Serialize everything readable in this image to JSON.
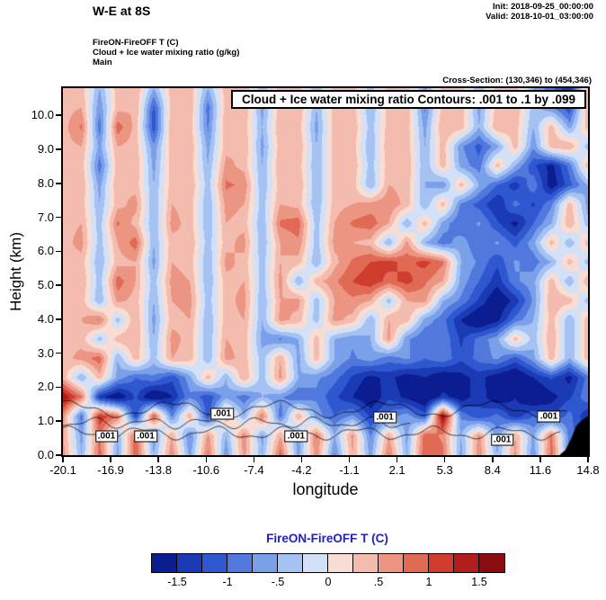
{
  "header": {
    "title": "W-E at 8S",
    "init": "Init: 2018-09-25_00:00:00",
    "valid": "Valid: 2018-10-01_03:00:00",
    "diff_field": "FireON-FireOFF T   (C)",
    "overlay_field": "Cloud + Ice water mixing ratio   (g/kg)",
    "domain": "Main",
    "cross_section": "Cross-Section: (130,346) to (454,346)"
  },
  "chart_data": {
    "type": "heatmap",
    "title": "W-E at 8S",
    "contour_title": "Cloud + Ice water mixing ratio Contours: .001 to .1 by .099",
    "xlabel": "longitude",
    "ylabel": "Height (km)",
    "x_ticks": [
      "-20.1",
      "-16.9",
      "-13.8",
      "-10.6",
      "-7.4",
      "-4.2",
      "-1.1",
      "2.1",
      "5.3",
      "8.4",
      "11.6",
      "14.8"
    ],
    "y_ticks": [
      "0.0",
      "1.0",
      "2.0",
      "3.0",
      "4.0",
      "5.0",
      "6.0",
      "7.0",
      "8.0",
      "9.0",
      "10.0"
    ],
    "x_range": [
      -20.1,
      14.8
    ],
    "y_range": [
      0,
      10.8
    ],
    "value_units": "C",
    "grid_note": "FireON-FireOFF temperature difference (C), rows top-to-bottom from 10.8 km to 0 km, estimated from shading",
    "grid": [
      [
        0.4,
        0.4,
        -0.5,
        0.4,
        0.5,
        -0.5,
        0.4,
        0.4,
        -0.5,
        0.4,
        0.5,
        -0.5,
        0.4,
        0.4,
        -0.5,
        0.4,
        0.4,
        -0.4,
        0.4,
        0.4,
        -0.6,
        0.4,
        0.4,
        -0.5,
        0.4,
        0.4,
        -0.5,
        -0.9,
        -1.5,
        0.4
      ],
      [
        0.4,
        0.5,
        -0.7,
        0.4,
        0.5,
        -1.1,
        0.4,
        0.5,
        -0.9,
        0.4,
        0.5,
        -0.6,
        0.4,
        0.5,
        -0.5,
        0.4,
        0.4,
        -0.5,
        0.4,
        0.5,
        -0.8,
        0.4,
        0.4,
        -0.6,
        0.4,
        0.5,
        -0.4,
        -0.7,
        -1.2,
        0.4
      ],
      [
        0.4,
        0.8,
        -0.9,
        0.9,
        0.4,
        -1.2,
        0.5,
        0.4,
        -0.8,
        0.5,
        0.4,
        -0.5,
        0.5,
        0.4,
        -0.6,
        0.4,
        0.5,
        -0.4,
        0.4,
        0.4,
        -0.6,
        0.5,
        0.4,
        -0.5,
        0.5,
        0.4,
        -0.5,
        0.4,
        -0.6,
        0.4
      ],
      [
        0.4,
        0.5,
        -0.6,
        0.5,
        0.4,
        -0.7,
        0.4,
        0.5,
        -0.6,
        0.4,
        0.5,
        -0.6,
        0.4,
        0.5,
        -0.5,
        0.4,
        0.4,
        -0.5,
        0.5,
        0.4,
        -0.5,
        0.4,
        -0.7,
        -1.1,
        -0.6,
        0.4,
        -0.7,
        0.4,
        0.5,
        -0.4
      ],
      [
        0.4,
        0.4,
        -0.9,
        0.4,
        0.5,
        -0.6,
        0.4,
        0.4,
        -0.5,
        0.6,
        0.4,
        -0.5,
        0.5,
        0.4,
        -0.5,
        0.4,
        0.5,
        -0.4,
        0.4,
        0.5,
        -0.5,
        0.4,
        -0.6,
        -0.9,
        0.4,
        -0.5,
        -1.2,
        -1.6,
        -0.9,
        0.4
      ],
      [
        0.4,
        0.5,
        -0.6,
        0.5,
        0.4,
        -0.5,
        0.4,
        0.5,
        -0.4,
        0.8,
        0.7,
        -0.5,
        0.4,
        0.5,
        -0.5,
        0.4,
        0.4,
        -0.5,
        0.5,
        0.4,
        -0.5,
        -0.7,
        0.4,
        -0.5,
        -1.0,
        -1.4,
        -0.8,
        -1.7,
        -1.1,
        -0.5
      ],
      [
        0.4,
        0.4,
        -0.5,
        0.4,
        0.6,
        -0.5,
        0.5,
        0.4,
        -0.5,
        0.6,
        0.5,
        -0.4,
        0.5,
        0.4,
        -0.5,
        0.4,
        0.5,
        0.6,
        0.7,
        0.4,
        -0.5,
        0.4,
        -0.8,
        -1.1,
        -1.5,
        -0.9,
        -1.3,
        -0.8,
        0.4,
        -0.6
      ],
      [
        0.4,
        0.5,
        -0.4,
        0.8,
        0.4,
        -0.5,
        0.6,
        0.4,
        -0.5,
        0.5,
        0.4,
        -0.5,
        0.8,
        0.9,
        -0.4,
        0.5,
        0.8,
        0.9,
        0.5,
        -0.5,
        0.4,
        -0.6,
        -1.0,
        -0.7,
        -1.2,
        -1.6,
        -1.0,
        -0.5,
        0.5,
        -0.4
      ],
      [
        0.4,
        0.6,
        -0.4,
        0.5,
        0.9,
        -0.5,
        0.4,
        0.5,
        -0.4,
        0.4,
        0.6,
        -0.5,
        0.5,
        0.7,
        -0.4,
        0.6,
        0.5,
        0.4,
        -0.5,
        0.6,
        -0.5,
        -0.9,
        -0.6,
        -1.0,
        -0.7,
        -1.1,
        -0.6,
        0.4,
        -0.5,
        0.4
      ],
      [
        0.4,
        0.4,
        -0.5,
        0.4,
        0.5,
        -0.6,
        0.5,
        0.4,
        -0.5,
        0.6,
        0.4,
        -0.4,
        0.5,
        0.4,
        -0.5,
        0.4,
        0.8,
        1.0,
        1.1,
        0.9,
        1.1,
        0.8,
        -0.5,
        -0.8,
        -1.2,
        -0.7,
        -0.9,
        -0.5,
        0.4,
        -0.4
      ],
      [
        0.4,
        0.5,
        -0.4,
        0.9,
        0.5,
        -0.4,
        0.6,
        0.5,
        -0.5,
        0.4,
        0.5,
        -0.4,
        0.6,
        -0.5,
        0.4,
        0.7,
        1.0,
        1.2,
        0.9,
        1.1,
        0.8,
        0.5,
        -0.6,
        -1.0,
        -1.4,
        -0.8,
        -0.6,
        0.4,
        -0.5,
        0.5
      ],
      [
        0.4,
        0.4,
        -0.5,
        0.6,
        0.4,
        -0.5,
        0.5,
        0.6,
        -0.4,
        0.4,
        0.6,
        -0.5,
        0.5,
        0.6,
        -0.4,
        0.5,
        0.7,
        0.5,
        -0.4,
        0.5,
        0.6,
        -0.5,
        -0.8,
        -1.3,
        -1.8,
        -1.4,
        -0.7,
        0.5,
        0.4,
        -0.4
      ],
      [
        0.4,
        0.5,
        0.8,
        -0.4,
        0.5,
        -0.6,
        0.4,
        0.5,
        -0.5,
        0.4,
        0.5,
        -0.5,
        0.6,
        0.4,
        -0.4,
        0.6,
        0.4,
        -0.5,
        0.5,
        0.4,
        -0.6,
        -0.9,
        -1.5,
        -1.9,
        -1.6,
        -0.9,
        -0.5,
        0.4,
        -0.5,
        0.4
      ],
      [
        0.4,
        0.4,
        -0.4,
        0.4,
        0.5,
        -0.5,
        0.6,
        0.4,
        -0.5,
        0.5,
        0.4,
        -0.6,
        -0.8,
        -0.5,
        0.4,
        -0.5,
        -0.7,
        -0.5,
        0.6,
        -0.7,
        -1.0,
        -0.8,
        -1.3,
        -0.9,
        -0.6,
        0.4,
        -0.4,
        0.5,
        -0.5,
        0.4
      ],
      [
        0.4,
        0.6,
        0.9,
        -0.5,
        0.4,
        -0.4,
        0.5,
        0.4,
        -0.5,
        0.6,
        0.4,
        -0.4,
        0.5,
        -0.6,
        0.4,
        -0.5,
        -0.8,
        -0.6,
        -0.9,
        -0.7,
        -1.0,
        -0.8,
        -1.2,
        -0.9,
        -0.7,
        -1.1,
        -0.6,
        0.4,
        -0.5,
        0.4
      ],
      [
        0.4,
        -0.5,
        0.4,
        -0.6,
        -1.0,
        -0.8,
        -1.2,
        -0.6,
        0.4,
        -0.5,
        0.5,
        -0.4,
        0.6,
        -0.5,
        -0.7,
        -0.9,
        -1.3,
        -1.6,
        -1.4,
        -1.7,
        -1.5,
        -1.8,
        -1.6,
        -1.4,
        -1.7,
        -1.9,
        -1.5,
        -1.2,
        -1.6,
        -0.9
      ],
      [
        1.5,
        0.8,
        -1.4,
        -1.8,
        -1.2,
        -1.9,
        -1.5,
        -0.8,
        -1.2,
        -0.6,
        -0.9,
        -0.5,
        -0.7,
        -1.0,
        -0.8,
        -1.2,
        -1.5,
        -1.8,
        -1.3,
        -1.6,
        -1.9,
        -1.4,
        -1.7,
        -1.3,
        -1.8,
        -1.5,
        -1.9,
        -1.6,
        -1.3,
        -0.8
      ],
      [
        0.6,
        -0.9,
        1.2,
        0.8,
        -1.3,
        1.0,
        -0.8,
        0.5,
        -1.2,
        0.6,
        -0.5,
        0.8,
        -0.9,
        0.5,
        -0.6,
        -1.0,
        -0.7,
        -1.3,
        -0.9,
        -0.6,
        -1.1,
        1.6,
        -0.8,
        -1.2,
        -0.9,
        -1.4,
        -1.0,
        -1.3,
        -0.9,
        -1.5
      ],
      [
        0.5,
        -0.6,
        0.8,
        -0.5,
        0.9,
        -0.7,
        0.5,
        -0.8,
        0.6,
        -0.5,
        0.7,
        -0.6,
        0.5,
        -0.7,
        0.8,
        -0.5,
        0.6,
        -0.8,
        0.5,
        -0.6,
        0.9,
        0.7,
        -0.5,
        0.6,
        -0.7,
        0.5,
        -0.6,
        0.8,
        -0.9,
        -1.2
      ],
      [
        0.6,
        -0.5,
        0.9,
        -0.6,
        1.0,
        -0.5,
        0.7,
        -0.6,
        0.8,
        -0.7,
        0.6,
        -0.5,
        0.9,
        -0.6,
        0.7,
        -0.8,
        0.5,
        -0.6,
        0.8,
        -0.5,
        1.0,
        0.8,
        -0.6,
        0.7,
        -0.5,
        0.6,
        -0.7,
        0.9,
        -0.8,
        -1.0
      ]
    ],
    "contour_lines": [
      {
        "base": 1.35,
        "amp": 0.2,
        "freq": 0.9,
        "phase": 0.5,
        "from": -20.1,
        "to": 13.4
      },
      {
        "base": 0.65,
        "amp": 0.15,
        "freq": 1.3,
        "phase": 2.0,
        "from": -20.1,
        "to": 13.0
      },
      {
        "base": 0.95,
        "amp": 0.12,
        "freq": 1.7,
        "phase": 1.0,
        "from": -20.1,
        "to": 3.0
      }
    ],
    "contour_labels": [
      {
        "text": ".001",
        "lon": -17.2,
        "km": 0.55
      },
      {
        "text": ".001",
        "lon": -14.6,
        "km": 0.55
      },
      {
        "text": ".001",
        "lon": -9.5,
        "km": 1.22
      },
      {
        "text": ".001",
        "lon": -4.6,
        "km": 0.55
      },
      {
        "text": ".001",
        "lon": 1.3,
        "km": 1.1
      },
      {
        "text": ".001",
        "lon": 9.1,
        "km": 0.45
      },
      {
        "text": ".001",
        "lon": 12.2,
        "km": 1.15
      }
    ],
    "terrain": [
      [
        12.9,
        0
      ],
      [
        13.3,
        0.15
      ],
      [
        13.7,
        0.5
      ],
      [
        14.0,
        0.85
      ],
      [
        14.3,
        1.0
      ],
      [
        14.8,
        1.15
      ],
      [
        14.8,
        0
      ]
    ]
  },
  "colorbar": {
    "label": "FireON-FireOFF T  (C)",
    "label_color": "#2222bb",
    "tick_labels": [
      "-1.5",
      "-1",
      "-.5",
      "0",
      ".5",
      "1",
      "1.5"
    ],
    "levels": [
      -1.75,
      -1.5,
      -1.25,
      -1,
      -0.75,
      -0.5,
      -0.25,
      0,
      0.25,
      0.5,
      0.75,
      1,
      1.25,
      1.5,
      1.75
    ],
    "colors": [
      "#0b1d91",
      "#1b3ab5",
      "#2f58d0",
      "#5078dd",
      "#7ba0ea",
      "#a6c2f2",
      "#d2e0f8",
      "#f8ddd4",
      "#f3bcae",
      "#ec9583",
      "#e16a55",
      "#d03c2e",
      "#b01f1b",
      "#8c0d10"
    ]
  }
}
